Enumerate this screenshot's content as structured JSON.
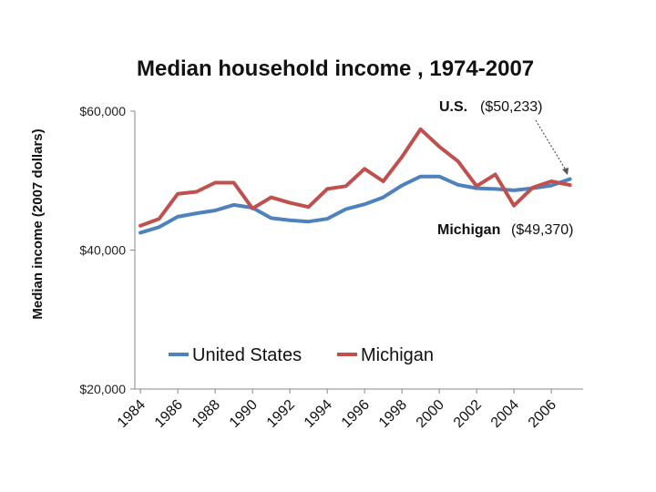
{
  "chart_data": {
    "type": "line",
    "title": "Median household income ,  1974-2007",
    "xlabel": "",
    "ylabel": "Median income (2007 dollars)",
    "ylim": [
      20000,
      60000
    ],
    "xlim": [
      1984,
      2007
    ],
    "y_ticks": [
      {
        "value": 20000,
        "label": "$20,000"
      },
      {
        "value": 40000,
        "label": "$40,000"
      },
      {
        "value": 60000,
        "label": "$60,000"
      }
    ],
    "x_ticks": [
      {
        "value": 1984,
        "label": "1984"
      },
      {
        "value": 1986,
        "label": "1986"
      },
      {
        "value": 1988,
        "label": "1988"
      },
      {
        "value": 1990,
        "label": "1990"
      },
      {
        "value": 1992,
        "label": "1992"
      },
      {
        "value": 1994,
        "label": "1994"
      },
      {
        "value": 1996,
        "label": "1996"
      },
      {
        "value": 1998,
        "label": "1998"
      },
      {
        "value": 2000,
        "label": "2000"
      },
      {
        "value": 2002,
        "label": "2002"
      },
      {
        "value": 2004,
        "label": "2004"
      },
      {
        "value": 2006,
        "label": "2006"
      }
    ],
    "x": [
      1984,
      1985,
      1986,
      1987,
      1988,
      1989,
      1990,
      1991,
      1992,
      1993,
      1994,
      1995,
      1996,
      1997,
      1998,
      1999,
      2000,
      2001,
      2002,
      2003,
      2004,
      2005,
      2006,
      2007
    ],
    "series": [
      {
        "name": "United States",
        "color": "#4f81bd",
        "values": [
          42500,
          43300,
          44800,
          45300,
          45700,
          46500,
          46100,
          44600,
          44300,
          44100,
          44500,
          45900,
          46600,
          47600,
          49300,
          50600,
          50600,
          49400,
          48900,
          48800,
          48600,
          48900,
          49300,
          50233
        ]
      },
      {
        "name": "Michigan",
        "color": "#c0504d",
        "values": [
          43500,
          44500,
          48100,
          48400,
          49700,
          49700,
          46000,
          47600,
          46800,
          46200,
          48800,
          49200,
          51700,
          49900,
          53400,
          57400,
          54900,
          52800,
          49200,
          50900,
          46400,
          49000,
          49900,
          49370
        ]
      }
    ],
    "legend": {
      "position": "bottom-left",
      "entries": [
        "United States",
        "Michigan"
      ]
    },
    "annotations": [
      {
        "label": "U.S.",
        "value_text": "($50,233)",
        "points_to": "United States 2007"
      },
      {
        "label": "Michigan",
        "value_text": "($49,370)"
      }
    ],
    "grid": false
  }
}
